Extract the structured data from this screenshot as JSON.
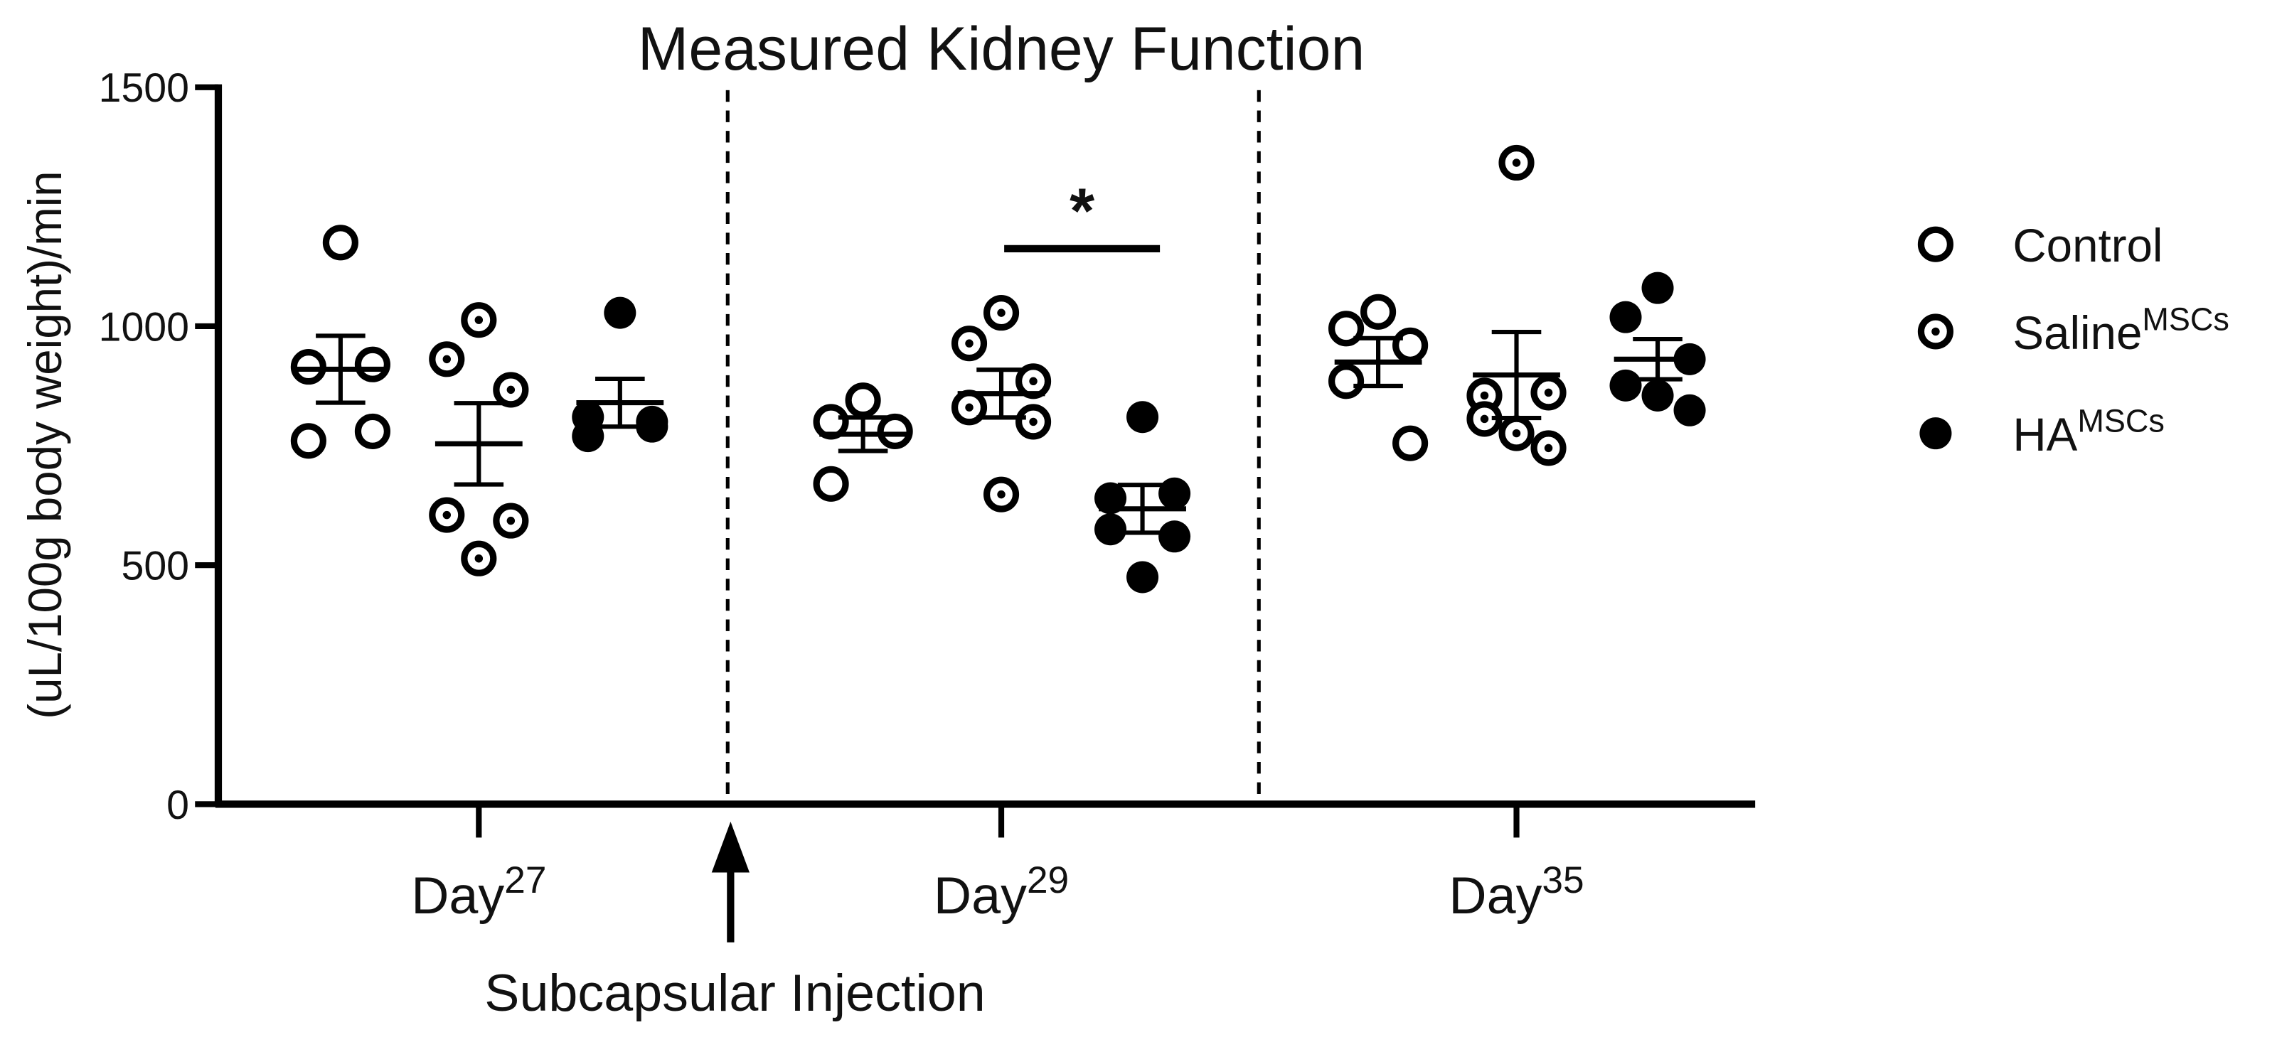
{
  "chart_data": {
    "type": "dotplot",
    "title": "Measured Kidney Function",
    "y_label": "(uL/100g body weight)/min",
    "categories": [
      "Day",
      "Day",
      "Day"
    ],
    "category_superscripts": [
      "27",
      "29",
      "35"
    ],
    "ylim": [
      0,
      1500
    ],
    "yticks": [
      0,
      500,
      1000,
      1500
    ],
    "series": [
      {
        "name": "Control",
        "marker": "open",
        "values": [
          [
            1175,
            915,
            920,
            760,
            780
          ],
          [
            845,
            800,
            780,
            670
          ],
          [
            1030,
            995,
            960,
            885,
            755
          ]
        ],
        "mean": [
          910,
          774,
          925
        ],
        "sem": [
          70,
          35,
          50
        ]
      },
      {
        "name": "Saline",
        "name_superscript": "MSCs",
        "marker": "dotted",
        "values": [
          [
            1013,
            931,
            867,
            605,
            593,
            514
          ],
          [
            1028,
            964,
            885,
            830,
            800,
            648
          ],
          [
            1342,
            855,
            861,
            806,
            745,
            776
          ]
        ],
        "mean": [
          754,
          859,
          898
        ],
        "sem": [
          85,
          50,
          90
        ]
      },
      {
        "name": "HA",
        "name_superscript": "MSCs",
        "marker": "filled",
        "values": [
          [
            1028,
            770,
            800,
            810,
            790
          ],
          [
            810,
            640,
            650,
            575,
            560,
            475
          ],
          [
            1080,
            1019,
            931,
            876,
            824,
            855
          ]
        ],
        "mean": [
          840,
          618,
          931
        ],
        "sem": [
          50,
          50,
          42
        ]
      }
    ],
    "significance": {
      "category": 1,
      "from_series": 1,
      "to_series": 2,
      "label": "*"
    },
    "annotation": "Subcapsular Injection"
  }
}
